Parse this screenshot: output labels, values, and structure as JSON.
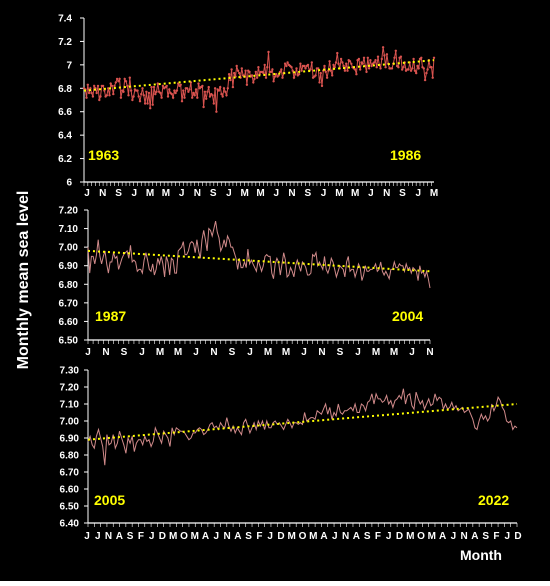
{
  "figure": {
    "ylabel": "Monthly mean sea level",
    "xlabel": "Month",
    "colors": {
      "background": "#000000",
      "series": "#d9534f",
      "series_panel2": "#d08a8a",
      "trend": "#ffff00",
      "axis": "#ffffff",
      "year_label": "#ffff00"
    }
  },
  "chart_data": [
    {
      "type": "line",
      "start_label": "1963",
      "end_label": "1986",
      "ylim": [
        6,
        7.4
      ],
      "yticks": [
        "6",
        "6.2",
        "6.4",
        "6.6",
        "6.8",
        "7",
        "7.2",
        "7.4"
      ],
      "x_tick_labels": [
        "J",
        "N",
        "S",
        "J",
        "M",
        "M",
        "J",
        "N",
        "S",
        "J",
        "M",
        "M",
        "J",
        "N",
        "S",
        "J",
        "M",
        "M",
        "J",
        "N",
        "S",
        "J",
        "M"
      ],
      "trend_start": 6.78,
      "trend_end": 7.04,
      "series": [
        {
          "values": [
            6.8,
            6.79,
            6.72,
            6.83,
            6.76,
            6.8,
            6.76,
            6.73,
            6.82,
            6.8,
            6.76,
            6.82,
            6.7,
            6.73,
            6.82,
            6.82,
            6.78,
            6.73,
            6.74,
            6.8,
            6.74,
            6.84,
            6.82,
            6.75,
            6.82,
            6.85,
            6.88,
            6.86,
            6.88,
            6.72,
            6.78,
            6.77,
            6.88,
            6.86,
            6.82,
            6.74,
            6.89,
            6.78,
            6.7,
            6.73,
            6.79,
            6.78,
            6.78,
            6.73,
            6.69,
            6.75,
            6.8,
            6.74,
            6.67,
            6.77,
            6.67,
            6.76,
            6.63,
            6.81,
            6.66,
            6.81,
            6.75,
            6.77,
            6.84,
            6.77,
            6.76,
            6.72,
            6.82,
            6.8,
            6.81,
            6.82,
            6.73,
            6.79,
            6.76,
            6.75,
            6.72,
            6.78,
            6.76,
            6.78,
            6.84,
            6.82,
            6.83,
            6.69,
            6.78,
            6.72,
            6.8,
            6.8,
            6.77,
            6.79,
            6.85,
            6.72,
            6.76,
            6.74,
            6.79,
            6.72,
            6.84,
            6.8,
            6.81,
            6.82,
            6.64,
            6.77,
            6.71,
            6.77,
            6.81,
            6.73,
            6.75,
            6.74,
            6.67,
            6.8,
            6.6,
            6.79,
            6.78,
            6.81,
            6.75,
            6.73,
            6.8,
            6.77,
            6.74,
            6.8,
            6.92,
            6.87,
            6.96,
            6.81,
            6.93,
            6.9,
            6.99,
            6.95,
            6.93,
            6.89,
            6.97,
            6.91,
            6.9,
            6.95,
            6.83,
            6.95,
            6.94,
            6.9,
            6.91,
            6.85,
            6.88,
            6.94,
            6.89,
            6.98,
            6.92,
            6.94,
            6.94,
            6.93,
            7.0,
            6.89,
            6.98,
            7.11,
            6.94,
            6.94,
            6.96,
            6.86,
            6.9,
            6.92,
            6.9,
            6.91,
            6.94,
            6.96,
            6.89,
            6.93,
            7.01,
            6.99,
            7.02,
            7.0,
            6.99,
            6.98,
            6.95,
            6.89,
            6.92,
            6.97,
            6.91,
            6.92,
            7.01,
            6.95,
            6.99,
            6.99,
            6.97,
            6.99,
            7.0,
            6.95,
            6.96,
            7.02,
            6.89,
            6.9,
            6.91,
            6.97,
            6.97,
            6.85,
            6.93,
            6.82,
            6.95,
            6.99,
            6.94,
            6.89,
            6.95,
            7.03,
            6.95,
            6.91,
            7.0,
            6.98,
            7.02,
            7.1,
            7.01,
            6.97,
            7.05,
            7.02,
            6.99,
            6.95,
            7.01,
            6.95,
            7.04,
            7.03,
            7.01,
            6.98,
            6.97,
            6.96,
            6.92,
            7.04,
            7.05,
            6.96,
            7.02,
            7.01,
            7.06,
            6.99,
            6.94,
            7.06,
            6.97,
            7.04,
            6.99,
            7.01,
            7.02,
            7.04,
            6.98,
            7.07,
            7.0,
            6.97,
            7.05,
            7.15,
            7.08,
            6.98,
            7.09,
            7.01,
            6.97,
            6.97,
            6.97,
            7.01,
            7.06,
            7.12,
            6.99,
            6.98,
            7.06,
            7.07,
            6.96,
            6.98,
            7.02,
            6.95,
            6.96,
            6.96,
            7.02,
            6.95,
            6.97,
            7.05,
            6.95,
            6.93,
            6.99,
            6.97,
            7.05,
            7.06,
            6.98,
            6.97,
            6.87,
            6.93,
            6.96,
            7.04,
            6.98,
            6.98,
            6.89,
            7.06
          ]
        }
      ]
    },
    {
      "type": "line",
      "start_label": "1987",
      "end_label": "2004",
      "ylim": [
        6.5,
        7.2
      ],
      "yticks": [
        "6.50",
        "6.60",
        "6.70",
        "6.80",
        "6.90",
        "7.00",
        "7.10",
        "7.20"
      ],
      "x_tick_labels": [
        "J",
        "N",
        "S",
        "J",
        "M",
        "M",
        "J",
        "N",
        "S",
        "J",
        "M",
        "M",
        "J",
        "N",
        "S",
        "J",
        "M",
        "M",
        "J",
        "N"
      ],
      "trend_start": 6.98,
      "trend_end": 6.87,
      "series": [
        {
          "values": [
            7.0,
            6.86,
            6.95,
            6.95,
            6.91,
            6.96,
            7.04,
            6.95,
            6.91,
            6.95,
            6.98,
            6.91,
            6.86,
            6.92,
            6.92,
            6.97,
            6.94,
            6.95,
            6.88,
            6.91,
            6.94,
            6.96,
            6.97,
            6.98,
            6.94,
            7.01,
            6.92,
            6.93,
            6.92,
            6.87,
            6.88,
            6.88,
            6.86,
            6.93,
            6.97,
            6.93,
            6.88,
            6.87,
            6.91,
            6.85,
            6.88,
            6.94,
            6.91,
            6.95,
            6.91,
            6.84,
            6.95,
            6.92,
            6.85,
            6.94,
            6.93,
            6.86,
            6.86,
            6.98,
            6.99,
            7.0,
            7.03,
            6.96,
            6.96,
            6.98,
            7.02,
            7.03,
            7.02,
            6.97,
            7.04,
            6.98,
            6.94,
            7.04,
            7.09,
            7.04,
            6.98,
            7.1,
            7.09,
            7.06,
            7.1,
            7.14,
            7.08,
            7.05,
            6.98,
            7.0,
            7.04,
            7.0,
            7.06,
            7.04,
            7.0,
            7.0,
            6.97,
            6.94,
            6.88,
            6.94,
            6.89,
            6.89,
            6.92,
            6.89,
            6.99,
            6.91,
            6.93,
            6.91,
            6.89,
            6.87,
            6.93,
            6.9,
            6.87,
            6.9,
            6.95,
            6.96,
            6.95,
            6.95,
            6.86,
            6.83,
            6.91,
            6.94,
            6.92,
            6.85,
            6.91,
            6.97,
            6.93,
            6.84,
            6.85,
            6.89,
            6.87,
            6.84,
            6.9,
            6.93,
            6.9,
            6.87,
            6.92,
            6.91,
            6.89,
            6.85,
            6.85,
            6.86,
            6.96,
            6.95,
            6.97,
            6.9,
            6.92,
            6.9,
            6.88,
            6.95,
            6.88,
            6.86,
            6.89,
            6.94,
            6.92,
            6.88,
            6.84,
            6.87,
            6.9,
            6.89,
            6.88,
            6.84,
            6.92,
            6.95,
            6.87,
            6.88,
            6.88,
            6.84,
            6.87,
            6.91,
            6.89,
            6.82,
            6.85,
            6.9,
            6.87,
            6.87,
            6.88,
            6.88,
            6.89,
            6.91,
            6.87,
            6.88,
            6.92,
            6.87,
            6.85,
            6.87,
            6.85,
            6.83,
            6.88,
            6.88,
            6.92,
            6.89,
            6.89,
            6.91,
            6.9,
            6.9,
            6.87,
            6.91,
            6.88,
            6.89,
            6.86,
            6.89,
            6.88,
            6.87,
            6.82,
            6.9,
            6.86,
            6.87,
            6.84,
            6.87,
            6.83,
            6.78
          ]
        }
      ]
    },
    {
      "type": "line",
      "start_label": "2005",
      "end_label": "2022",
      "ylim": [
        6.4,
        7.3
      ],
      "yticks": [
        "6.40",
        "6.50",
        "6.60",
        "6.70",
        "6.80",
        "6.90",
        "7.00",
        "7.10",
        "7.20",
        "7.30"
      ],
      "x_tick_labels": [
        "J",
        "J",
        "N",
        "A",
        "S",
        "F",
        "J",
        "D",
        "M",
        "O",
        "M",
        "A",
        "J",
        "N",
        "A",
        "S",
        "F",
        "J",
        "D",
        "M",
        "O",
        "M",
        "A",
        "J",
        "N",
        "A",
        "S",
        "F",
        "J",
        "D",
        "M",
        "O",
        "M",
        "A",
        "J",
        "N",
        "A",
        "S",
        "F",
        "J",
        "D"
      ],
      "trend_start": 6.89,
      "trend_end": 7.1,
      "series": [
        {
          "values": [
            6.88,
            6.91,
            6.86,
            6.84,
            6.91,
            6.95,
            6.9,
            6.85,
            6.74,
            6.92,
            6.86,
            6.87,
            6.92,
            6.84,
            6.87,
            6.94,
            6.9,
            6.86,
            6.81,
            6.9,
            6.87,
            6.91,
            6.82,
            6.87,
            6.89,
            6.89,
            6.86,
            6.91,
            6.88,
            6.89,
            6.85,
            6.88,
            6.96,
            6.93,
            6.9,
            6.87,
            6.94,
            6.92,
            6.9,
            6.85,
            6.96,
            6.92,
            6.96,
            6.95,
            6.94,
            6.94,
            6.93,
            6.91,
            6.89,
            6.9,
            6.93,
            6.93,
            6.95,
            6.96,
            6.95,
            6.92,
            6.93,
            6.95,
            6.98,
            6.99,
            6.96,
            6.97,
            6.95,
            6.99,
            6.97,
            6.96,
            7.02,
            6.97,
            6.94,
            6.97,
            6.93,
            6.96,
            6.94,
            6.92,
            6.99,
            7.01,
            6.97,
            6.93,
            6.96,
            6.99,
            6.95,
            7.0,
            6.97,
            7.0,
            6.95,
            7.0,
            6.96,
            6.96,
            6.99,
            7.0,
            6.98,
            6.99,
            6.97,
            6.95,
            6.98,
            7.01,
            6.99,
            6.96,
            6.99,
            6.99,
            6.98,
            6.99,
            6.98,
            7.05,
            7.0,
            7.01,
            7.02,
            7.02,
            7.01,
            7.06,
            7.05,
            7.04,
            7.07,
            7.1,
            7.04,
            7.08,
            7.01,
            7.05,
            7.03,
            7.1,
            7.05,
            7.04,
            7.06,
            7.06,
            7.07,
            7.08,
            7.06,
            7.1,
            7.05,
            7.05,
            7.1,
            7.09,
            7.06,
            7.11,
            7.12,
            7.16,
            7.1,
            7.16,
            7.13,
            7.13,
            7.11,
            7.12,
            7.15,
            7.1,
            7.12,
            7.08,
            7.12,
            7.13,
            7.15,
            7.13,
            7.19,
            7.1,
            7.15,
            7.16,
            7.09,
            7.07,
            7.17,
            7.13,
            7.1,
            7.12,
            7.07,
            7.1,
            7.13,
            7.09,
            7.1,
            7.16,
            7.12,
            7.14,
            7.13,
            7.07,
            7.1,
            7.07,
            7.08,
            7.11,
            7.07,
            7.09,
            7.06,
            7.07,
            7.08,
            7.05,
            7.06,
            7.07,
            7.04,
            7.01,
            6.96,
            6.95,
            7.0,
            7.04,
            7.01,
            7.03,
            7.0,
            7.02,
            7.1,
            7.06,
            7.09,
            7.14,
            7.12,
            7.08,
            7.06,
            7.0,
            6.99,
            7.0,
            6.95,
            6.97,
            6.96
          ]
        }
      ]
    }
  ]
}
